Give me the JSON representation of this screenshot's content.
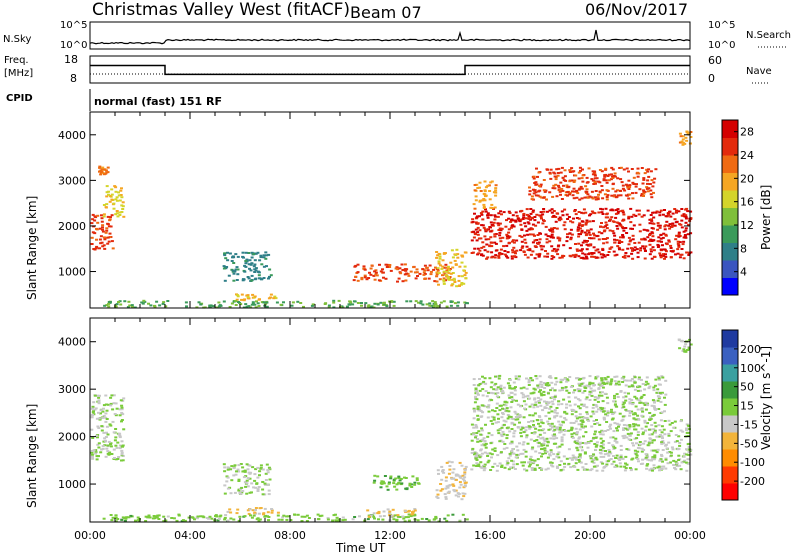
{
  "header": {
    "station": "Christmas Valley West (fitACF)",
    "beam": "Beam 07",
    "date": "06/Nov/2017"
  },
  "scan_panel": {
    "nsky_label": "N.Sky",
    "nsearch_label": "N.Search",
    "nsky_top_tick": "10^5",
    "nsky_bottom_tick": "10^0",
    "nsearch_top_tick": "10^5",
    "nsearch_bottom_tick": "10^0",
    "freq_label_line1": "Freq.",
    "freq_label_line2": "[MHz]",
    "freq_ticks": [
      "18",
      "8"
    ],
    "nave_label": "Nave",
    "nave_ticks": [
      "60",
      "0"
    ],
    "cpid_label": "CPID",
    "cpid_value": "normal (fast) 151 RF"
  },
  "chart_data": [
    {
      "type": "line",
      "title": "",
      "series": [
        {
          "name": "Freq.",
          "x_hours": [
            0,
            3,
            3,
            15,
            15,
            24
          ],
          "values": [
            14.5,
            14.5,
            11.2,
            11.2,
            14.5,
            14.5
          ]
        },
        {
          "name": "Nave",
          "x_hours": [
            0,
            24
          ],
          "values": [
            20,
            20
          ]
        }
      ],
      "xlim": [
        0,
        24
      ],
      "ylim_left": [
        8,
        18
      ],
      "ylim_right": [
        0,
        60
      ],
      "colors": [
        "#000000",
        "#000000"
      ]
    },
    {
      "type": "heatmap",
      "quantity": "Power",
      "ylabel": "Slant Range [km]",
      "yticks": [
        "1000",
        "2000",
        "3000",
        "4000"
      ],
      "ylim": [
        200,
        4500
      ],
      "colorbar_title": "Power [dB]",
      "colorbar_ticks": [
        "28",
        "24",
        "20",
        "16",
        "12",
        "8",
        "4"
      ],
      "colorbar_range": [
        0,
        30
      ],
      "colormap": [
        "#0000ff",
        "#3a55c0",
        "#2f7f88",
        "#3a9a5a",
        "#7fbf3a",
        "#d4d42a",
        "#f5a623",
        "#ef6a12",
        "#e32a0c",
        "#d40000"
      ],
      "regions": [
        {
          "t0": 0.0,
          "t1": 0.9,
          "r0": 1500,
          "r1": 2300,
          "value": 25
        },
        {
          "t0": 0.5,
          "t1": 1.3,
          "r0": 2200,
          "r1": 2900,
          "value": 17
        },
        {
          "t0": 0.3,
          "t1": 0.7,
          "r0": 3150,
          "r1": 3350,
          "value": 22
        },
        {
          "t0": 5.3,
          "t1": 7.2,
          "r0": 800,
          "r1": 1450,
          "value": 8
        },
        {
          "t0": 5.3,
          "t1": 7.5,
          "r0": 380,
          "r1": 520,
          "value": 19
        },
        {
          "t0": 0.5,
          "t1": 15.2,
          "r0": 230,
          "r1": 380,
          "value": 12
        },
        {
          "t0": 10.5,
          "t1": 14.4,
          "r0": 800,
          "r1": 1180,
          "value": 24
        },
        {
          "t0": 13.8,
          "t1": 15.0,
          "r0": 700,
          "r1": 1500,
          "value": 18
        },
        {
          "t0": 15.2,
          "t1": 24.0,
          "r0": 1300,
          "r1": 2400,
          "value": 27
        },
        {
          "t0": 17.5,
          "t1": 22.6,
          "r0": 2600,
          "r1": 3300,
          "value": 25
        },
        {
          "t0": 15.3,
          "t1": 16.2,
          "r0": 2400,
          "r1": 3000,
          "value": 20
        },
        {
          "t0": 23.5,
          "t1": 24.0,
          "r0": 3800,
          "r1": 4100,
          "value": 20
        }
      ]
    },
    {
      "type": "heatmap",
      "quantity": "Velocity",
      "ylabel": "Slant Range [km]",
      "xlabel": "Time UT",
      "xticks": [
        "00:00",
        "04:00",
        "08:00",
        "12:00",
        "16:00",
        "20:00",
        "00:00"
      ],
      "xlim": [
        0,
        24
      ],
      "yticks": [
        "1000",
        "2000",
        "3000",
        "4000"
      ],
      "ylim": [
        200,
        4500
      ],
      "colorbar_title": "Velocity [m s^-1]",
      "colorbar_ticks": [
        "200",
        "100",
        "50",
        "15",
        "-15",
        "-50",
        "-100",
        "-200"
      ],
      "colorbar_range": [
        -250,
        250
      ],
      "colormap": [
        "#ff0000",
        "#ff3a00",
        "#ff8c00",
        "#f2b43a",
        "#c8c8c8",
        "#7acb3a",
        "#3a9a3a",
        "#3aa0a0",
        "#3a60c0",
        "#1f3aa0"
      ],
      "regions": [
        {
          "t0": 0.0,
          "t1": 1.3,
          "r0": 1500,
          "r1": 2900,
          "value": 0
        },
        {
          "t0": 5.3,
          "t1": 7.2,
          "r0": 800,
          "r1": 1450,
          "value": 0
        },
        {
          "t0": 5.3,
          "t1": 7.5,
          "r0": 380,
          "r1": 520,
          "value": -60
        },
        {
          "t0": 0.5,
          "t1": 15.2,
          "r0": 230,
          "r1": 380,
          "value": 25
        },
        {
          "t0": 11.0,
          "t1": 13.0,
          "r0": 330,
          "r1": 500,
          "value": -60
        },
        {
          "t0": 11.3,
          "t1": 13.2,
          "r0": 900,
          "r1": 1200,
          "value": 40
        },
        {
          "t0": 13.8,
          "t1": 15.0,
          "r0": 700,
          "r1": 1500,
          "value": -40
        },
        {
          "t0": 15.2,
          "t1": 24.0,
          "r0": 1300,
          "r1": 2400,
          "value": 0
        },
        {
          "t0": 15.3,
          "t1": 23.0,
          "r0": 2400,
          "r1": 3300,
          "value": 0
        },
        {
          "t0": 23.5,
          "t1": 24.0,
          "r0": 3800,
          "r1": 4100,
          "value": 0
        }
      ]
    }
  ]
}
